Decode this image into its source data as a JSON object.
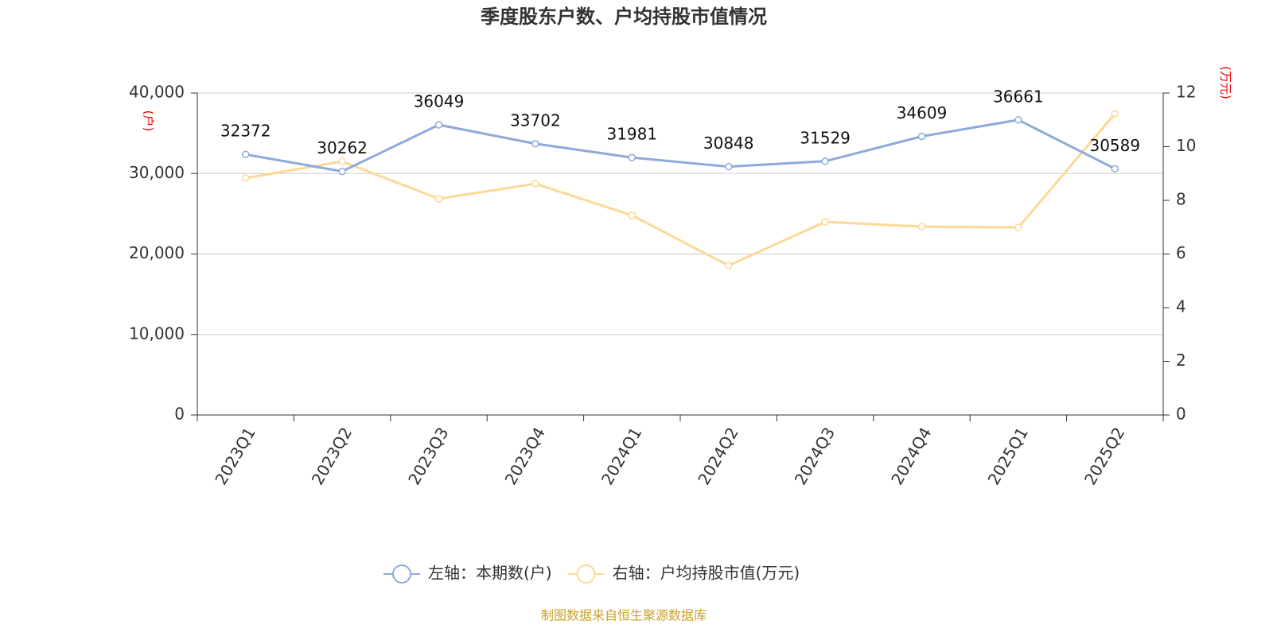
{
  "chart_data": {
    "type": "line",
    "title": "季度股东户数、户均持股市值情况",
    "y_label": "(户)",
    "y2_label": "(万元)",
    "source": "制图数据来自恒生聚源数据库",
    "categories": [
      "2023Q1",
      "2023Q2",
      "2023Q3",
      "2023Q4",
      "2024Q1",
      "2024Q2",
      "2024Q3",
      "2024Q4",
      "2025Q1",
      "2025Q2"
    ],
    "series": [
      {
        "name": "左轴：本期数(户)",
        "color": "#8eaadb",
        "values": [
          32372,
          30262,
          36049,
          33702,
          31981,
          30848,
          31529,
          34609,
          36661,
          30589
        ]
      },
      {
        "name": "右轴：户均持股市值(万元)",
        "color": "#fcd994",
        "axis": "y2",
        "values": [
          8.83,
          9.45,
          8.06,
          8.62,
          7.44,
          5.57,
          7.2,
          7.02,
          6.99,
          11.23
        ]
      }
    ],
    "ylim": [
      0,
      40000
    ],
    "yticks": [
      0,
      {
        "value": 10000,
        "label": "10,000"
      },
      {
        "value": 20000,
        "label": "20,000"
      },
      {
        "value": 30000,
        "label": "30,000"
      },
      {
        "value": 40000,
        "label": "40,000"
      }
    ],
    "y2lim": [
      0,
      12
    ],
    "y2ticks": [
      0,
      2,
      4,
      6,
      8,
      10,
      12
    ],
    "grid": true
  }
}
